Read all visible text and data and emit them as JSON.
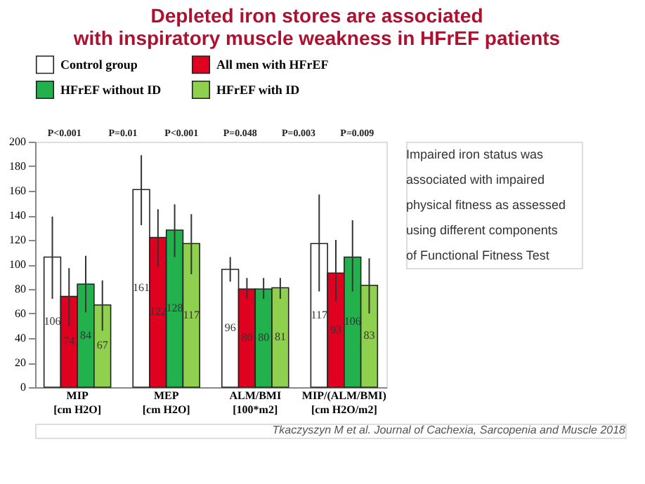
{
  "chart_data": {
    "type": "bar",
    "title": "Depleted iron stores are associated\nwith inspiratory muscle weakness in HFrEF patients",
    "subtitle": "Impaired iron status was\nassociated with impaired\nphysical fitness as assessed\nusing different components\nof Functional Fitness Test",
    "categories": [
      "MIP [cm H2O]",
      "MEP [cm H2O]",
      "ALM/BMI [100*m2]",
      "MIP/(ALM/BMI) [cm H2O/m2]"
    ],
    "series": [
      {
        "name": "Control group",
        "color": "#ffffff",
        "values": [
          106,
          161,
          96,
          117
        ],
        "errors": [
          [
            72,
            139
          ],
          [
            132,
            189
          ],
          [
            86,
            106
          ],
          [
            78,
            157
          ]
        ]
      },
      {
        "name": "All men with HFrEF",
        "color": "#e00020",
        "values": [
          74,
          122,
          80,
          93
        ],
        "errors": [
          [
            50,
            97
          ],
          [
            98,
            145
          ],
          [
            72,
            89
          ],
          [
            70,
            120
          ]
        ]
      },
      {
        "name": "HFrEF without ID",
        "color": "#22b14c",
        "values": [
          84,
          128,
          80,
          106
        ],
        "errors": [
          [
            61,
            107
          ],
          [
            106,
            149
          ],
          [
            72,
            89
          ],
          [
            78,
            136
          ]
        ]
      },
      {
        "name": "HFrEF with ID",
        "color": "#8fd14f",
        "values": [
          67,
          117,
          81,
          83
        ],
        "errors": [
          [
            46,
            87
          ],
          [
            92,
            141
          ],
          [
            72,
            89
          ],
          [
            60,
            105
          ]
        ]
      }
    ],
    "ylim": [
      0,
      200
    ],
    "yticks": [
      0,
      20,
      40,
      60,
      80,
      100,
      120,
      140,
      160,
      180,
      200
    ],
    "grid": false,
    "legend": "top",
    "data_labels": true,
    "annotations": [
      "P<0.001",
      "P=0.01",
      "P<0.001",
      "P=0.048",
      "P=0.003",
      "P=0.009",
      "Tkaczyszyn M et al. Journal of Cachexia, Sarcopenia and Muscle 2018"
    ]
  }
}
